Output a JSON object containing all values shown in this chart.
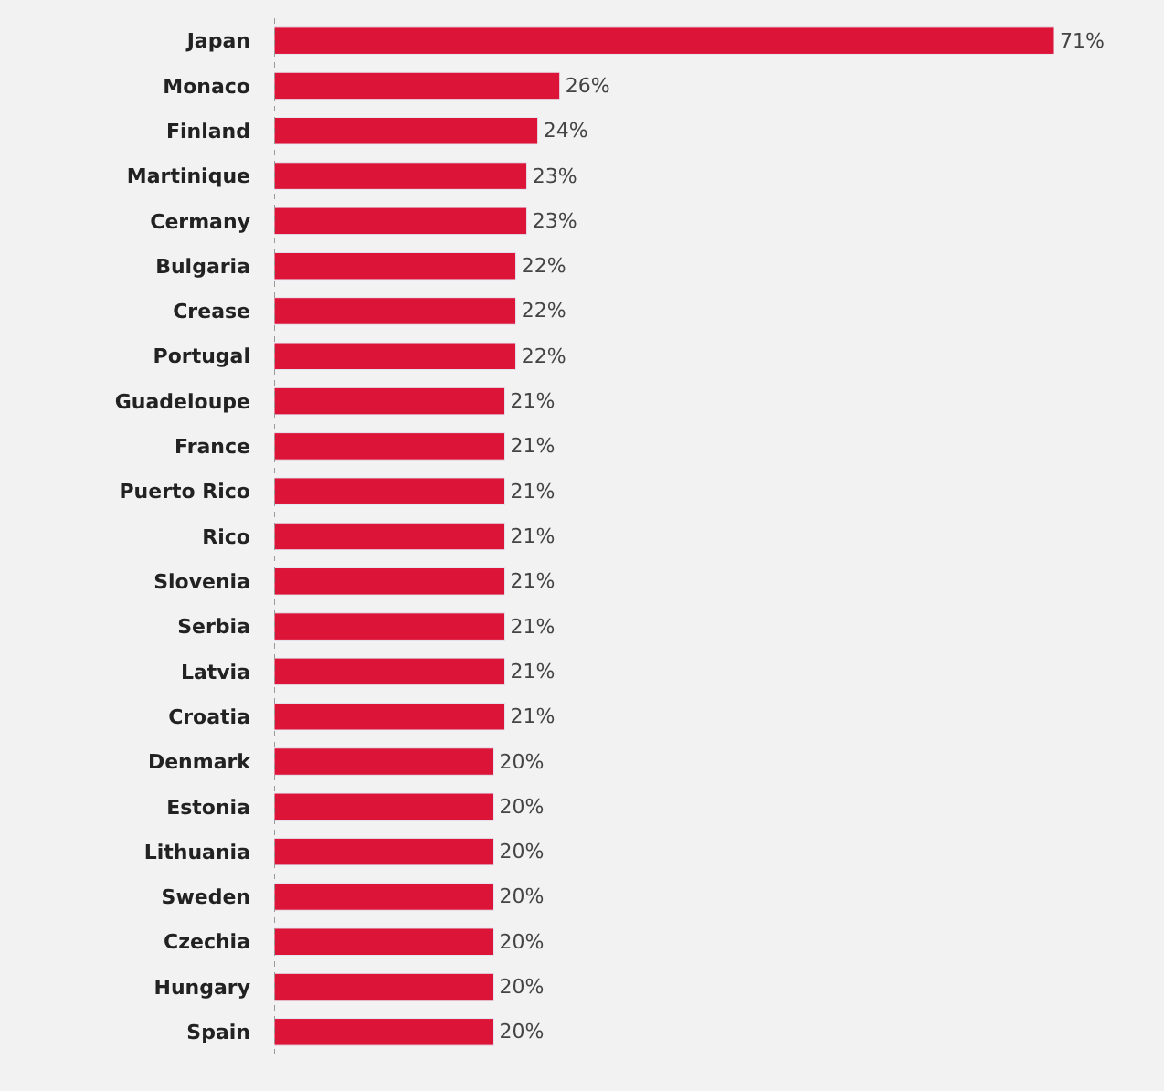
{
  "chart_data": {
    "type": "bar",
    "orientation": "horizontal",
    "color": "#dc1438",
    "categories": [
      "Japan",
      "Monaco",
      "Finland",
      "Martinique",
      "Cermany",
      "Bulgaria",
      "Crease",
      "Portugal",
      "Guadeloupe",
      "France",
      "Puerto Rico",
      "Rico",
      "Slovenia",
      "Serbia",
      "Latvia",
      "Croatia",
      "Denmark",
      "Estonia",
      "Lithuania",
      "Sweden",
      "Czechia",
      "Hungary",
      "Spain"
    ],
    "values": [
      71,
      26,
      24,
      23,
      23,
      22,
      22,
      22,
      21,
      21,
      21,
      21,
      21,
      21,
      21,
      21,
      20,
      20,
      20,
      20,
      20,
      20,
      20
    ],
    "value_labels": [
      "71%",
      "26%",
      "24%",
      "23%",
      "23%",
      "22%",
      "22%",
      "22%",
      "21%",
      "21%",
      "21%",
      "21%",
      "21%",
      "21%",
      "21%",
      "21%",
      "20%",
      "20%",
      "20%",
      "20%",
      "20%",
      "20%",
      "20%"
    ],
    "ref_lines": [
      {
        "axis": "x",
        "value": 0,
        "color": "#999999",
        "line_style": "dotted"
      }
    ],
    "grid": false,
    "legend": false
  }
}
